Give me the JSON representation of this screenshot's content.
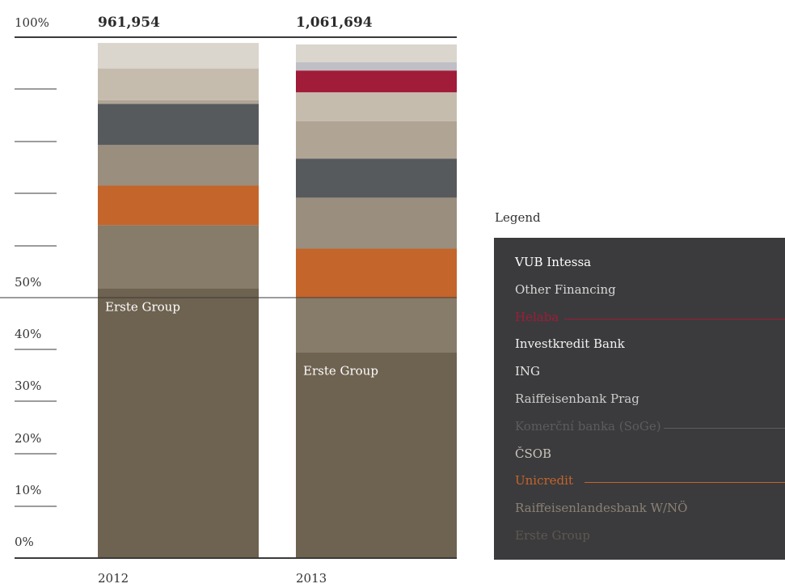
{
  "chart_data": {
    "type": "bar",
    "stacked": true,
    "normalized": true,
    "title": "",
    "xlabel": "",
    "ylabel": "",
    "ylim": [
      0,
      100
    ],
    "y_ticks": [
      "0%",
      "10%",
      "20%",
      "30%",
      "40%",
      "50%",
      "100%"
    ],
    "categories": [
      "2012",
      "2013"
    ],
    "totals": [
      "961,954",
      "1,061,694"
    ],
    "in_bar_labels": [
      "Erste Group",
      "Erste Group"
    ],
    "series": [
      {
        "name": "Erste Group",
        "color": "#6e6250",
        "values": [
          51.8,
          39.5
        ]
      },
      {
        "name": "Raiffeisenlandesbank W/NÖ",
        "color": "#877b69",
        "values": [
          12.1,
          10.4
        ]
      },
      {
        "name": "Unicredit",
        "color": "#c4652b",
        "values": [
          7.6,
          9.5
        ]
      },
      {
        "name": "ČSOB",
        "color": "#9a8e7e",
        "values": [
          7.8,
          9.8
        ]
      },
      {
        "name": "Komerční banka (SoGe)",
        "color": "#575a5d",
        "values": [
          7.9,
          7.5
        ]
      },
      {
        "name": "Raiffeisenbank Prag",
        "color": "#b0a494",
        "values": [
          0,
          7.2
        ]
      },
      {
        "name": "ING",
        "color": "#b0a494",
        "values": [
          0.7,
          0
        ]
      },
      {
        "name": "Investkredit Bank",
        "color": "#c6bcae",
        "values": [
          6.1,
          5.5
        ]
      },
      {
        "name": "Helaba",
        "color": "#a01c38",
        "values": [
          0,
          4.2
        ]
      },
      {
        "name": "Other Financing",
        "color": "#c0bfc5",
        "values": [
          0,
          1.6
        ]
      },
      {
        "name": "VUB Intessa",
        "color": "#dad5cd",
        "values": [
          4.9,
          3.4
        ]
      }
    ]
  },
  "legend": {
    "title": "Legend",
    "items": [
      {
        "label": "VUB Intessa",
        "color": "#ffffff",
        "connector": false
      },
      {
        "label": "Other Financing",
        "color": "#d8d8d8",
        "connector": false
      },
      {
        "label": "Helaba",
        "color": "#a01c38",
        "connector": true
      },
      {
        "label": "Investkredit Bank",
        "color": "#f2f2f2",
        "connector": false
      },
      {
        "label": "ING",
        "color": "#e4e4e4",
        "connector": false
      },
      {
        "label": "Raiffeisenbank Prag",
        "color": "#cccccc",
        "connector": false
      },
      {
        "label": "Komerční banka (SoGe)",
        "color": "#5c5c5e",
        "connector": true
      },
      {
        "label": "ČSOB",
        "color": "#c8c3bb",
        "connector": false
      },
      {
        "label": "Unicredit",
        "color": "#c4652b",
        "connector": true
      },
      {
        "label": "Raiffeisenlandesbank W/NÖ",
        "color": "#8a8175",
        "connector": false
      },
      {
        "label": "Erste Group",
        "color": "#5e5850",
        "connector": false
      }
    ]
  }
}
